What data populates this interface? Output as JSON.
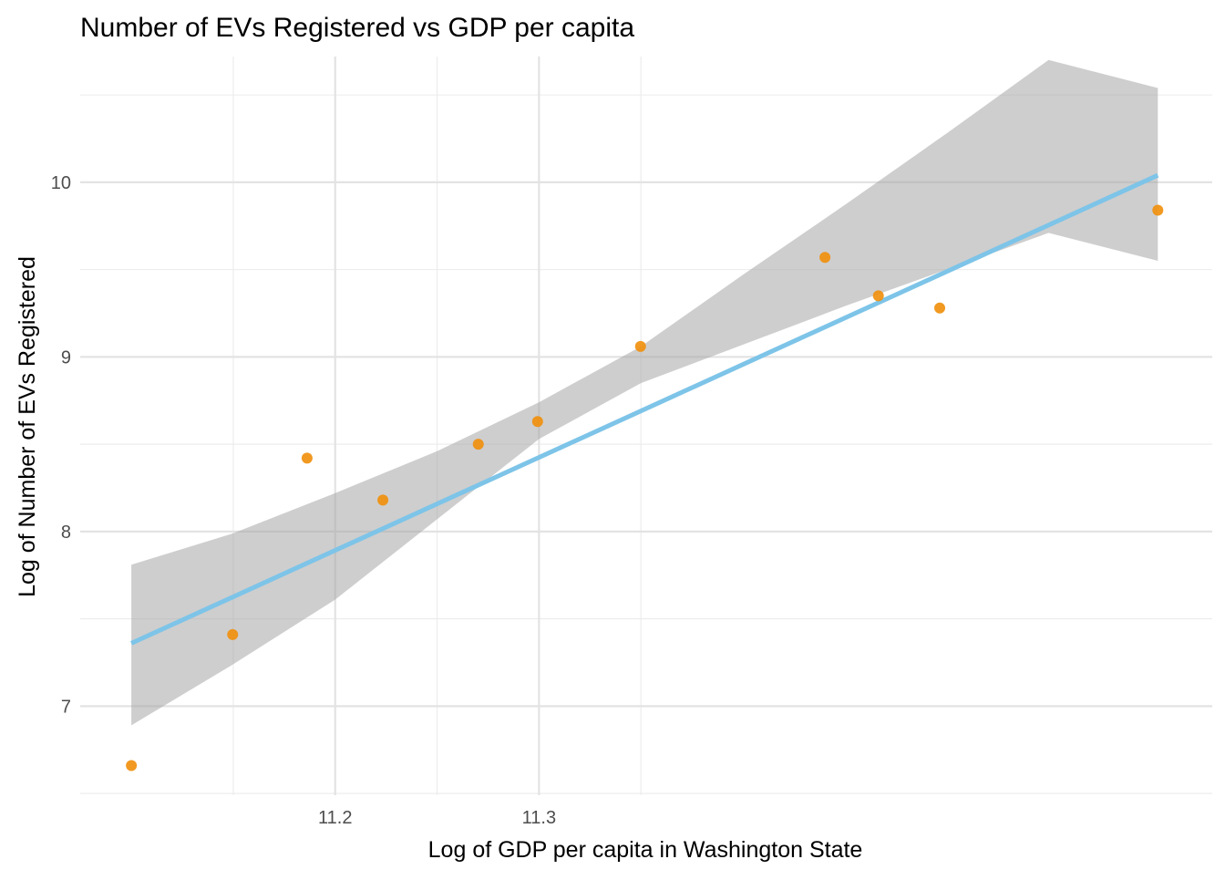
{
  "chart_data": {
    "type": "scatter",
    "title": "Number of EVs Registered vs GDP per capita",
    "xlabel": "Log of GDP per capita in Washington State",
    "ylabel": "Log of Number of EVs Registered",
    "xlim": [
      11.0749,
      11.6303
    ],
    "ylim": [
      6.49,
      10.72
    ],
    "x_ticks": [
      {
        "value": 11.2,
        "label": "11.2"
      },
      {
        "value": 11.3,
        "label": "11.3"
      }
    ],
    "x_minor_ticks": [
      11.15,
      11.25,
      11.35
    ],
    "y_ticks": [
      {
        "value": 7,
        "label": "7"
      },
      {
        "value": 8,
        "label": "8"
      },
      {
        "value": 9,
        "label": "9"
      },
      {
        "value": 10,
        "label": "10"
      }
    ],
    "y_minor_ticks": [
      6.5,
      7.5,
      8.5,
      9.5,
      10.5
    ],
    "grid": true,
    "series": [
      {
        "type": "scatter",
        "color": "#F0900E",
        "points": [
          {
            "x": 11.1,
            "y": 6.66
          },
          {
            "x": 11.1497,
            "y": 7.41
          },
          {
            "x": 11.1862,
            "y": 8.42
          },
          {
            "x": 11.2234,
            "y": 8.18
          },
          {
            "x": 11.2702,
            "y": 8.5
          },
          {
            "x": 11.2993,
            "y": 8.63
          },
          {
            "x": 11.3498,
            "y": 9.06
          },
          {
            "x": 11.4403,
            "y": 9.57
          },
          {
            "x": 11.4665,
            "y": 9.35
          },
          {
            "x": 11.4966,
            "y": 9.28
          },
          {
            "x": 11.6036,
            "y": 9.84
          }
        ]
      },
      {
        "type": "line",
        "color": "#7DC4E8",
        "points": [
          {
            "x": 11.1,
            "y": 7.36
          },
          {
            "x": 11.6036,
            "y": 10.04
          }
        ]
      },
      {
        "type": "band",
        "color": "#A6A6A6",
        "points": [
          {
            "x": 11.1,
            "lower": 6.89,
            "upper": 7.81
          },
          {
            "x": 11.15,
            "lower": 7.24,
            "upper": 7.99
          },
          {
            "x": 11.2,
            "lower": 7.61,
            "upper": 8.22
          },
          {
            "x": 11.25,
            "lower": 8.07,
            "upper": 8.46
          },
          {
            "x": 11.3,
            "lower": 8.53,
            "upper": 8.74
          },
          {
            "x": 11.35,
            "lower": 8.85,
            "upper": 9.06
          },
          {
            "x": 11.4,
            "lower": 9.07,
            "upper": 9.47
          },
          {
            "x": 11.45,
            "lower": 9.29,
            "upper": 9.87
          },
          {
            "x": 11.5,
            "lower": 9.5,
            "upper": 10.28
          },
          {
            "x": 11.55,
            "lower": 9.71,
            "upper": 10.7
          },
          {
            "x": 11.6036,
            "lower": 9.55,
            "upper": 10.54
          }
        ]
      }
    ]
  }
}
